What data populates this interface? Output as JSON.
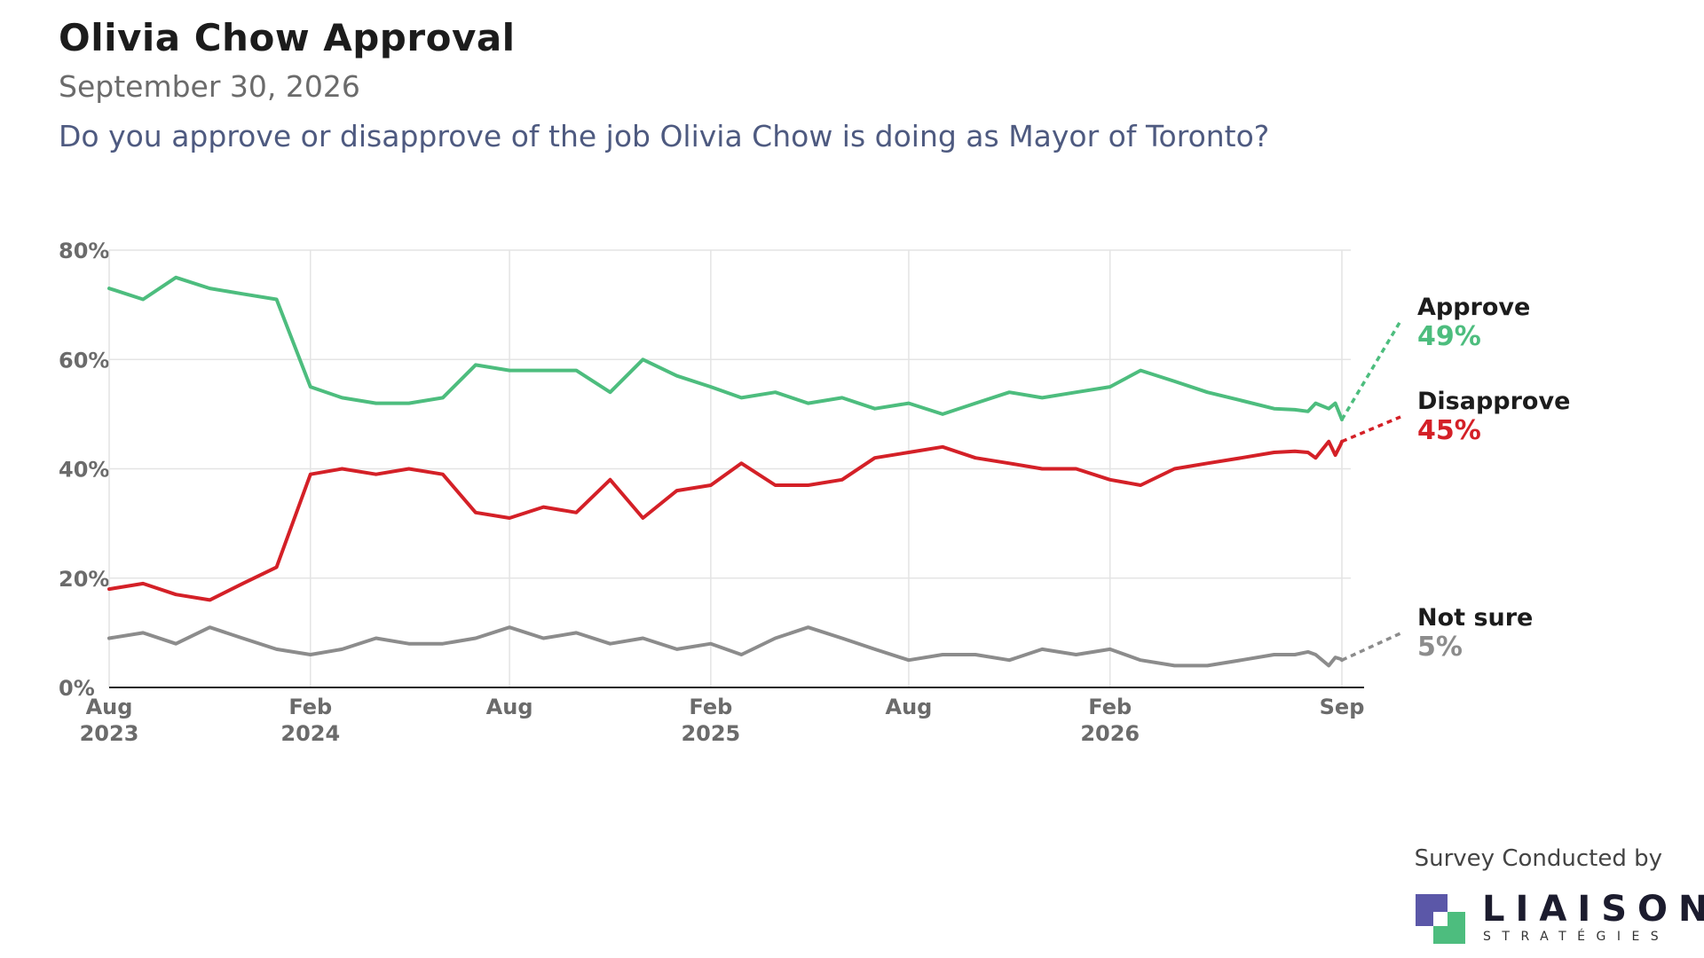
{
  "header": {
    "title": "Olivia Chow Approval",
    "date": "September 30, 2026",
    "question": "Do you approve or disapprove of the job Olivia Chow is doing as Mayor of Toronto?"
  },
  "footer": {
    "credit": "Survey Conducted by",
    "logo_name": "LIAISON",
    "logo_sub": "STRATÉGIES"
  },
  "colors": {
    "approve": "#4dbd7e",
    "disapprove": "#d42027",
    "not_sure": "#8c8c8c",
    "grid": "#e4e4e4",
    "axis_text": "#6b6b6b",
    "logo_purple": "#5b57a8",
    "logo_green": "#4dbd7e"
  },
  "chart_data": {
    "type": "line",
    "ylim": [
      0,
      80
    ],
    "y_ticks": [
      0,
      20,
      40,
      60,
      80
    ],
    "y_tick_labels": [
      "0%",
      "20%",
      "40%",
      "60%",
      "80%"
    ],
    "x_ticks": [
      {
        "date": "2023-08",
        "label": "Aug",
        "sub": "2023"
      },
      {
        "date": "2024-02",
        "label": "Feb",
        "sub": "2024"
      },
      {
        "date": "2024-08",
        "label": "Aug",
        "sub": ""
      },
      {
        "date": "2025-02",
        "label": "Feb",
        "sub": "2025"
      },
      {
        "date": "2025-08",
        "label": "Aug",
        "sub": ""
      },
      {
        "date": "2026-02",
        "label": "Feb",
        "sub": "2026"
      },
      {
        "date": "2026-09",
        "label": "Sep",
        "sub": ""
      }
    ],
    "grid": true,
    "legend": "end-labels-right",
    "series": [
      {
        "name": "Approve",
        "end_label": "49%",
        "color_key": "approve",
        "points": [
          [
            "2023-08-01",
            73
          ],
          [
            "2023-09-01",
            71
          ],
          [
            "2023-10-01",
            75
          ],
          [
            "2023-11-01",
            73
          ],
          [
            "2023-12-01",
            72
          ],
          [
            "2024-01-01",
            71
          ],
          [
            "2024-02-01",
            55
          ],
          [
            "2024-03-01",
            53
          ],
          [
            "2024-04-01",
            52
          ],
          [
            "2024-05-01",
            52
          ],
          [
            "2024-06-01",
            53
          ],
          [
            "2024-07-01",
            59
          ],
          [
            "2024-08-01",
            58
          ],
          [
            "2024-09-01",
            58
          ],
          [
            "2024-10-01",
            58
          ],
          [
            "2024-11-01",
            54
          ],
          [
            "2024-12-01",
            60
          ],
          [
            "2025-01-01",
            57
          ],
          [
            "2025-02-01",
            55
          ],
          [
            "2025-03-01",
            53
          ],
          [
            "2025-04-01",
            54
          ],
          [
            "2025-05-01",
            52
          ],
          [
            "2025-06-01",
            53
          ],
          [
            "2025-07-01",
            51
          ],
          [
            "2025-08-01",
            52
          ],
          [
            "2025-09-01",
            50
          ],
          [
            "2025-10-01",
            52
          ],
          [
            "2025-11-01",
            54
          ],
          [
            "2025-12-01",
            53
          ],
          [
            "2026-01-01",
            54
          ],
          [
            "2026-02-01",
            55
          ],
          [
            "2026-03-01",
            58
          ],
          [
            "2026-04-01",
            56
          ],
          [
            "2026-05-01",
            54
          ],
          [
            "2026-06-01",
            52.5
          ],
          [
            "2026-07-01",
            51
          ],
          [
            "2026-07-20",
            50.8
          ],
          [
            "2026-08-01",
            50.5
          ],
          [
            "2026-08-08",
            52
          ],
          [
            "2026-08-20",
            51
          ],
          [
            "2026-08-26",
            52
          ],
          [
            "2026-08-31",
            49.5
          ],
          [
            "2026-09-01",
            49
          ]
        ]
      },
      {
        "name": "Disapprove",
        "end_label": "45%",
        "color_key": "disapprove",
        "points": [
          [
            "2023-08-01",
            18
          ],
          [
            "2023-09-01",
            19
          ],
          [
            "2023-10-01",
            17
          ],
          [
            "2023-11-01",
            16
          ],
          [
            "2023-12-01",
            19
          ],
          [
            "2024-01-01",
            22
          ],
          [
            "2024-02-01",
            39
          ],
          [
            "2024-03-01",
            40
          ],
          [
            "2024-04-01",
            39
          ],
          [
            "2024-05-01",
            40
          ],
          [
            "2024-06-01",
            39
          ],
          [
            "2024-07-01",
            32
          ],
          [
            "2024-08-01",
            31
          ],
          [
            "2024-09-01",
            33
          ],
          [
            "2024-10-01",
            32
          ],
          [
            "2024-11-01",
            38
          ],
          [
            "2024-12-01",
            31
          ],
          [
            "2025-01-01",
            36
          ],
          [
            "2025-02-01",
            37
          ],
          [
            "2025-03-01",
            41
          ],
          [
            "2025-04-01",
            37
          ],
          [
            "2025-05-01",
            37
          ],
          [
            "2025-06-01",
            38
          ],
          [
            "2025-07-01",
            42
          ],
          [
            "2025-08-01",
            43
          ],
          [
            "2025-09-01",
            44
          ],
          [
            "2025-10-01",
            42
          ],
          [
            "2025-11-01",
            41
          ],
          [
            "2025-12-01",
            40
          ],
          [
            "2026-01-01",
            40
          ],
          [
            "2026-02-01",
            38
          ],
          [
            "2026-03-01",
            37
          ],
          [
            "2026-04-01",
            40
          ],
          [
            "2026-05-01",
            41
          ],
          [
            "2026-06-01",
            42
          ],
          [
            "2026-07-01",
            43
          ],
          [
            "2026-07-20",
            43.2
          ],
          [
            "2026-08-01",
            43
          ],
          [
            "2026-08-08",
            42
          ],
          [
            "2026-08-20",
            45
          ],
          [
            "2026-08-26",
            42.5
          ],
          [
            "2026-08-31",
            44.5
          ],
          [
            "2026-09-01",
            45
          ]
        ]
      },
      {
        "name": "Not sure",
        "end_label": "5%",
        "color_key": "not_sure",
        "points": [
          [
            "2023-08-01",
            9
          ],
          [
            "2023-09-01",
            10
          ],
          [
            "2023-10-01",
            8
          ],
          [
            "2023-11-01",
            11
          ],
          [
            "2023-12-01",
            9
          ],
          [
            "2024-01-01",
            7
          ],
          [
            "2024-02-01",
            6
          ],
          [
            "2024-03-01",
            7
          ],
          [
            "2024-04-01",
            9
          ],
          [
            "2024-05-01",
            8
          ],
          [
            "2024-06-01",
            8
          ],
          [
            "2024-07-01",
            9
          ],
          [
            "2024-08-01",
            11
          ],
          [
            "2024-09-01",
            9
          ],
          [
            "2024-10-01",
            10
          ],
          [
            "2024-11-01",
            8
          ],
          [
            "2024-12-01",
            9
          ],
          [
            "2025-01-01",
            7
          ],
          [
            "2025-02-01",
            8
          ],
          [
            "2025-03-01",
            6
          ],
          [
            "2025-04-01",
            9
          ],
          [
            "2025-05-01",
            11
          ],
          [
            "2025-06-01",
            9
          ],
          [
            "2025-07-01",
            7
          ],
          [
            "2025-08-01",
            5
          ],
          [
            "2025-09-01",
            6
          ],
          [
            "2025-10-01",
            6
          ],
          [
            "2025-11-01",
            5
          ],
          [
            "2025-12-01",
            7
          ],
          [
            "2026-01-01",
            6
          ],
          [
            "2026-02-01",
            7
          ],
          [
            "2026-03-01",
            5
          ],
          [
            "2026-04-01",
            4
          ],
          [
            "2026-05-01",
            4
          ],
          [
            "2026-06-01",
            5
          ],
          [
            "2026-07-01",
            6
          ],
          [
            "2026-07-20",
            6
          ],
          [
            "2026-08-01",
            6.5
          ],
          [
            "2026-08-08",
            6
          ],
          [
            "2026-08-20",
            4
          ],
          [
            "2026-08-26",
            5.5
          ],
          [
            "2026-08-31",
            5.2
          ],
          [
            "2026-09-01",
            5
          ]
        ]
      }
    ]
  }
}
